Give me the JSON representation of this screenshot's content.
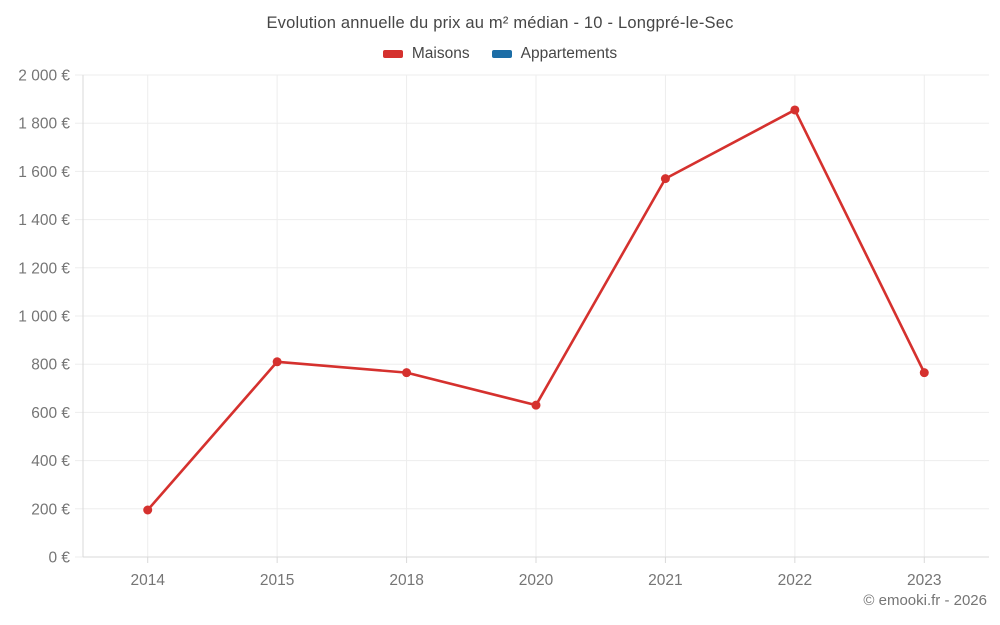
{
  "page": {
    "footer": "© emooki.fr - 2026"
  },
  "legend": {
    "items": [
      {
        "label": "Maisons",
        "color": "#d5312e"
      },
      {
        "label": "Appartements",
        "color": "#1c6da6"
      }
    ]
  },
  "colors": {
    "maisons": "#d5312e",
    "appartements": "#1c6da6",
    "axis_text": "#757575",
    "title_text": "#464646"
  },
  "chart_data": {
    "type": "line",
    "title": "Evolution annuelle du prix au m² médian - 10 - Longpré-le-Sec",
    "categories": [
      "2014",
      "2015",
      "2018",
      "2020",
      "2021",
      "2022",
      "2023"
    ],
    "series": [
      {
        "name": "Maisons",
        "color": "#d5312e",
        "values": [
          195,
          810,
          765,
          630,
          1570,
          1855,
          765
        ]
      },
      {
        "name": "Appartements",
        "color": "#1c6da6",
        "values": []
      }
    ],
    "xlabel": "",
    "ylabel": "",
    "ylim": [
      0,
      2000
    ],
    "ytick_step": 200,
    "ytick_labels": [
      "0 €",
      "200 €",
      "400 €",
      "600 €",
      "800 €",
      "1 000 €",
      "1 200 €",
      "1 400 €",
      "1 600 €",
      "1 800 €",
      "2 000 €"
    ],
    "grid": true,
    "legend_position": "top"
  }
}
